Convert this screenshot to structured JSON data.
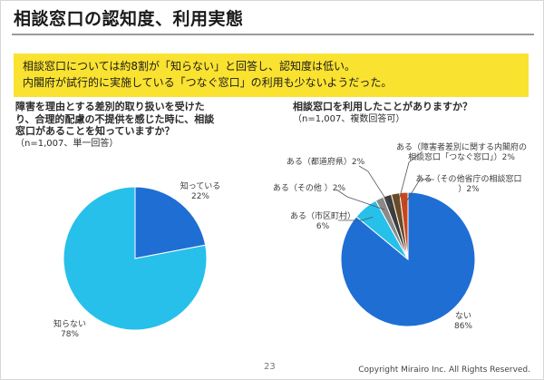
{
  "slide": {
    "title": "相談窓口の認知度、利用実態",
    "summary_lines": [
      "相談窓口については約8割が「知らない」と回答し、認知度は低い。",
      "内閣府が試行的に実施している「つなぐ窓口」の利用も少ないようだった。"
    ],
    "page_number": "23",
    "copyright": "Copyright Mirairo Inc. All Rights Reserved."
  },
  "colors": {
    "accent_yellow": "#fae230",
    "dark_blue": "#1f6ed4",
    "light_blue": "#26c0ea",
    "rule": "#9a9a9a"
  },
  "chart_data": [
    {
      "type": "pie",
      "question": [
        "障害を理由とする差別的取り扱いを受けた",
        "り、合理的配慮の不提供を感じた時に、相談",
        "窓口があることを知っていますか？"
      ],
      "note": "（n=1,007、単一回答）",
      "slices": [
        {
          "label": "知っている",
          "value": 22,
          "value_label": "22%",
          "color": "#1f6ed4"
        },
        {
          "label": "知らない",
          "value": 78,
          "value_label": "78%",
          "color": "#26c0ea"
        }
      ]
    },
    {
      "type": "pie",
      "question": [
        "相談窓口を利用したことがありますか？"
      ],
      "note": "（n=1,007、複数回答可）",
      "slices": [
        {
          "label": "ない",
          "value": 86,
          "value_label": "86%",
          "color": "#1f6ed4"
        },
        {
          "label": "ある（市区町村）",
          "value": 6,
          "value_label": "6%",
          "color": "#26c0ea"
        },
        {
          "label": "ある（その他 ）2%",
          "value": 2,
          "color": "#8a8a8a"
        },
        {
          "label": "ある（都道府県）2%",
          "value": 2,
          "color": "#3d3d3d"
        },
        {
          "label": [
            "ある（障害者差別に関する内閣府の",
            "相談窓口「つなぐ窓口」）2%"
          ],
          "value": 2,
          "color": "#6b4a25"
        },
        {
          "label": [
            "ある（その他省庁の相談窓口",
            "）2%"
          ],
          "value": 2,
          "color": "#c8461e"
        }
      ]
    }
  ]
}
